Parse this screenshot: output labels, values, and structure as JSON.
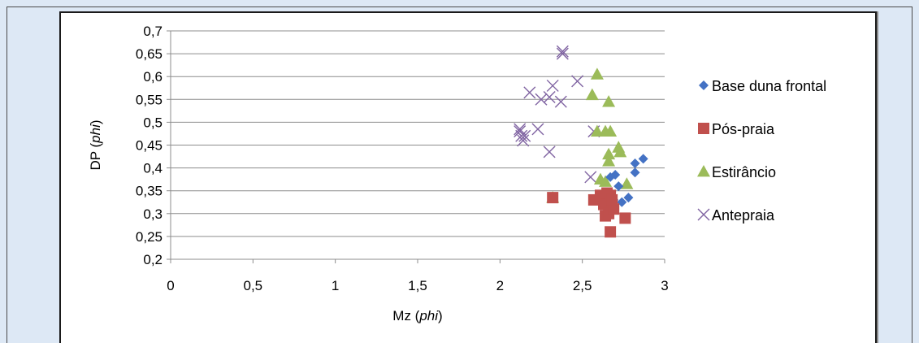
{
  "chart_data": {
    "type": "scatter",
    "xlabel": "Mz",
    "xlabel_unit": "phi",
    "ylabel": "DP",
    "ylabel_unit": "phi",
    "xlim": [
      0,
      3
    ],
    "ylim": [
      0.2,
      0.7
    ],
    "x_ticks": [
      "0",
      "0,5",
      "1",
      "1,5",
      "2",
      "2,5",
      "3"
    ],
    "y_ticks": [
      "0,2",
      "0,25",
      "0,3",
      "0,35",
      "0,4",
      "0,45",
      "0,5",
      "0,55",
      "0,6",
      "0,65",
      "0,7"
    ],
    "grid": "horizontal",
    "legend_position": "right",
    "series": [
      {
        "name": "Base duna frontal",
        "marker": "diamond",
        "color": "#4472c4",
        "points": [
          [
            2.87,
            0.42
          ],
          [
            2.82,
            0.41
          ],
          [
            2.82,
            0.39
          ],
          [
            2.7,
            0.385
          ],
          [
            2.72,
            0.36
          ],
          [
            2.67,
            0.38
          ],
          [
            2.78,
            0.335
          ],
          [
            2.74,
            0.325
          ],
          [
            2.69,
            0.33
          ],
          [
            2.62,
            0.33
          ]
        ]
      },
      {
        "name": "Pós-praia",
        "marker": "square",
        "color": "#c0504d",
        "points": [
          [
            2.32,
            0.335
          ],
          [
            2.57,
            0.33
          ],
          [
            2.61,
            0.34
          ],
          [
            2.63,
            0.32
          ],
          [
            2.65,
            0.345
          ],
          [
            2.67,
            0.34
          ],
          [
            2.68,
            0.32
          ],
          [
            2.64,
            0.295
          ],
          [
            2.66,
            0.3
          ],
          [
            2.69,
            0.31
          ],
          [
            2.76,
            0.29
          ],
          [
            2.67,
            0.26
          ],
          [
            2.68,
            0.33
          ]
        ]
      },
      {
        "name": "Estirâncio",
        "marker": "triangle",
        "color": "#9bbb59",
        "points": [
          [
            2.59,
            0.605
          ],
          [
            2.56,
            0.56
          ],
          [
            2.66,
            0.545
          ],
          [
            2.59,
            0.48
          ],
          [
            2.64,
            0.48
          ],
          [
            2.67,
            0.48
          ],
          [
            2.72,
            0.445
          ],
          [
            2.73,
            0.435
          ],
          [
            2.66,
            0.43
          ],
          [
            2.66,
            0.415
          ],
          [
            2.61,
            0.375
          ],
          [
            2.64,
            0.37
          ],
          [
            2.77,
            0.365
          ],
          [
            2.32,
            0.335
          ]
        ]
      },
      {
        "name": "Antepraia",
        "marker": "x",
        "color": "#8064a2",
        "points": [
          [
            2.38,
            0.65
          ],
          [
            2.38,
            0.655
          ],
          [
            2.47,
            0.59
          ],
          [
            2.18,
            0.565
          ],
          [
            2.32,
            0.58
          ],
          [
            2.3,
            0.555
          ],
          [
            2.25,
            0.55
          ],
          [
            2.37,
            0.545
          ],
          [
            2.12,
            0.485
          ],
          [
            2.13,
            0.47
          ],
          [
            2.15,
            0.47
          ],
          [
            2.23,
            0.485
          ],
          [
            2.14,
            0.46
          ],
          [
            2.12,
            0.48
          ],
          [
            2.3,
            0.435
          ],
          [
            2.57,
            0.48
          ],
          [
            2.55,
            0.38
          ]
        ]
      }
    ]
  }
}
